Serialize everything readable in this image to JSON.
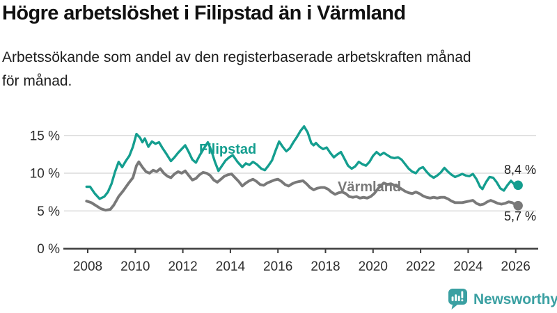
{
  "header": {
    "title": "Högre arbetslöshet i Filipstad än i Värmland",
    "subtitle_lines": [
      "Arbetssökande som andel av den registerbaserade arbetskraften månad",
      "för månad."
    ]
  },
  "chart_data": {
    "type": "line",
    "unit": "%",
    "grid": true,
    "legend_position": "inline-labels",
    "xlim": [
      2007.9,
      2026.8
    ],
    "ylim": [
      0,
      17
    ],
    "x_ticks": [
      {
        "v": 2008,
        "label": "2008"
      },
      {
        "v": 2010,
        "label": "2010"
      },
      {
        "v": 2012,
        "label": "2012"
      },
      {
        "v": 2014,
        "label": "2014"
      },
      {
        "v": 2016,
        "label": "2016"
      },
      {
        "v": 2018,
        "label": "2018"
      },
      {
        "v": 2020,
        "label": "2020"
      },
      {
        "v": 2022,
        "label": "2022"
      },
      {
        "v": 2024,
        "label": "2024"
      },
      {
        "v": 2026,
        "label": "2026"
      }
    ],
    "y_ticks": [
      {
        "v": 0,
        "label": "0 %"
      },
      {
        "v": 5,
        "label": "5 %"
      },
      {
        "v": 10,
        "label": "10 %"
      },
      {
        "v": 15,
        "label": "15 %"
      }
    ],
    "colors": {
      "grid": "#dcdcdc",
      "axis": "#3c3c3c",
      "tick_text": "#2e2e2e"
    },
    "series": [
      {
        "name": "Filipstad",
        "label": "Filipstad",
        "color": "#149e8f",
        "end_label": "8,4 %",
        "end_value": 8.4,
        "points": [
          [
            2007.95,
            8.2
          ],
          [
            2008.1,
            8.2
          ],
          [
            2008.3,
            7.3
          ],
          [
            2008.5,
            6.6
          ],
          [
            2008.7,
            6.9
          ],
          [
            2008.85,
            7.5
          ],
          [
            2009.0,
            8.6
          ],
          [
            2009.15,
            10.2
          ],
          [
            2009.3,
            11.5
          ],
          [
            2009.45,
            10.8
          ],
          [
            2009.6,
            11.6
          ],
          [
            2009.75,
            12.3
          ],
          [
            2009.9,
            13.5
          ],
          [
            2010.05,
            15.2
          ],
          [
            2010.2,
            14.7
          ],
          [
            2010.3,
            14.1
          ],
          [
            2010.4,
            14.6
          ],
          [
            2010.55,
            13.5
          ],
          [
            2010.7,
            14.2
          ],
          [
            2010.85,
            13.9
          ],
          [
            2011.0,
            14.1
          ],
          [
            2011.15,
            13.3
          ],
          [
            2011.3,
            12.6
          ],
          [
            2011.5,
            11.6
          ],
          [
            2011.65,
            12.1
          ],
          [
            2011.8,
            12.7
          ],
          [
            2011.95,
            13.2
          ],
          [
            2012.1,
            13.7
          ],
          [
            2012.25,
            12.8
          ],
          [
            2012.4,
            11.8
          ],
          [
            2012.55,
            11.4
          ],
          [
            2012.7,
            12.3
          ],
          [
            2012.85,
            13.1
          ],
          [
            2013.05,
            14.1
          ],
          [
            2013.2,
            13.0
          ],
          [
            2013.35,
            11.5
          ],
          [
            2013.5,
            10.3
          ],
          [
            2013.65,
            11.0
          ],
          [
            2013.8,
            11.7
          ],
          [
            2013.95,
            12.1
          ],
          [
            2014.1,
            12.4
          ],
          [
            2014.3,
            11.5
          ],
          [
            2014.5,
            10.8
          ],
          [
            2014.65,
            11.3
          ],
          [
            2014.8,
            11.1
          ],
          [
            2014.95,
            11.5
          ],
          [
            2015.1,
            11.2
          ],
          [
            2015.3,
            10.6
          ],
          [
            2015.45,
            10.4
          ],
          [
            2015.6,
            11.0
          ],
          [
            2015.75,
            11.7
          ],
          [
            2015.9,
            13.0
          ],
          [
            2016.05,
            14.2
          ],
          [
            2016.2,
            13.5
          ],
          [
            2016.35,
            12.9
          ],
          [
            2016.5,
            13.3
          ],
          [
            2016.65,
            14.1
          ],
          [
            2016.8,
            14.8
          ],
          [
            2016.95,
            15.6
          ],
          [
            2017.1,
            16.2
          ],
          [
            2017.25,
            15.4
          ],
          [
            2017.4,
            14.0
          ],
          [
            2017.5,
            13.7
          ],
          [
            2017.6,
            14.0
          ],
          [
            2017.75,
            13.5
          ],
          [
            2017.9,
            13.2
          ],
          [
            2018.05,
            13.4
          ],
          [
            2018.2,
            12.7
          ],
          [
            2018.35,
            12.1
          ],
          [
            2018.5,
            12.5
          ],
          [
            2018.65,
            12.8
          ],
          [
            2018.8,
            11.9
          ],
          [
            2018.95,
            11.0
          ],
          [
            2019.1,
            10.6
          ],
          [
            2019.25,
            10.9
          ],
          [
            2019.4,
            11.5
          ],
          [
            2019.55,
            11.2
          ],
          [
            2019.7,
            11.0
          ],
          [
            2019.85,
            11.5
          ],
          [
            2020.0,
            12.3
          ],
          [
            2020.15,
            12.8
          ],
          [
            2020.3,
            12.4
          ],
          [
            2020.45,
            12.7
          ],
          [
            2020.6,
            12.4
          ],
          [
            2020.75,
            12.1
          ],
          [
            2020.9,
            12.0
          ],
          [
            2021.05,
            12.1
          ],
          [
            2021.2,
            11.8
          ],
          [
            2021.35,
            11.2
          ],
          [
            2021.5,
            10.6
          ],
          [
            2021.65,
            10.2
          ],
          [
            2021.8,
            10.0
          ],
          [
            2021.95,
            10.6
          ],
          [
            2022.1,
            10.8
          ],
          [
            2022.25,
            10.2
          ],
          [
            2022.4,
            9.7
          ],
          [
            2022.55,
            9.4
          ],
          [
            2022.7,
            9.7
          ],
          [
            2022.85,
            10.1
          ],
          [
            2023.0,
            10.7
          ],
          [
            2023.15,
            10.2
          ],
          [
            2023.3,
            9.8
          ],
          [
            2023.45,
            9.5
          ],
          [
            2023.6,
            9.7
          ],
          [
            2023.75,
            9.9
          ],
          [
            2023.9,
            9.7
          ],
          [
            2024.05,
            9.6
          ],
          [
            2024.2,
            9.9
          ],
          [
            2024.35,
            9.2
          ],
          [
            2024.5,
            8.2
          ],
          [
            2024.6,
            7.9
          ],
          [
            2024.75,
            8.8
          ],
          [
            2024.9,
            9.5
          ],
          [
            2025.05,
            9.4
          ],
          [
            2025.2,
            8.8
          ],
          [
            2025.35,
            8.0
          ],
          [
            2025.5,
            7.7
          ],
          [
            2025.65,
            8.4
          ],
          [
            2025.8,
            9.0
          ],
          [
            2025.95,
            8.5
          ],
          [
            2026.1,
            8.4
          ]
        ]
      },
      {
        "name": "Värmland",
        "label": "Värmland",
        "color": "#797979",
        "end_label": "5,7 %",
        "end_value": 5.7,
        "points": [
          [
            2007.95,
            6.3
          ],
          [
            2008.15,
            6.1
          ],
          [
            2008.35,
            5.7
          ],
          [
            2008.55,
            5.3
          ],
          [
            2008.75,
            5.1
          ],
          [
            2008.95,
            5.2
          ],
          [
            2009.1,
            5.8
          ],
          [
            2009.3,
            6.9
          ],
          [
            2009.5,
            7.7
          ],
          [
            2009.7,
            8.6
          ],
          [
            2009.9,
            9.4
          ],
          [
            2010.05,
            11.0
          ],
          [
            2010.15,
            11.5
          ],
          [
            2010.3,
            10.8
          ],
          [
            2010.45,
            10.2
          ],
          [
            2010.6,
            10.0
          ],
          [
            2010.75,
            10.4
          ],
          [
            2010.9,
            10.2
          ],
          [
            2011.05,
            10.6
          ],
          [
            2011.2,
            10.0
          ],
          [
            2011.35,
            9.6
          ],
          [
            2011.5,
            9.4
          ],
          [
            2011.65,
            9.9
          ],
          [
            2011.8,
            10.2
          ],
          [
            2011.95,
            10.0
          ],
          [
            2012.1,
            10.3
          ],
          [
            2012.25,
            9.7
          ],
          [
            2012.4,
            9.1
          ],
          [
            2012.55,
            9.3
          ],
          [
            2012.7,
            9.8
          ],
          [
            2012.85,
            10.1
          ],
          [
            2013.0,
            10.0
          ],
          [
            2013.15,
            9.7
          ],
          [
            2013.3,
            9.1
          ],
          [
            2013.45,
            8.8
          ],
          [
            2013.6,
            9.2
          ],
          [
            2013.75,
            9.6
          ],
          [
            2013.9,
            9.8
          ],
          [
            2014.05,
            9.9
          ],
          [
            2014.2,
            9.4
          ],
          [
            2014.35,
            8.9
          ],
          [
            2014.5,
            8.3
          ],
          [
            2014.65,
            8.7
          ],
          [
            2014.8,
            9.0
          ],
          [
            2014.95,
            9.2
          ],
          [
            2015.1,
            8.9
          ],
          [
            2015.25,
            8.5
          ],
          [
            2015.4,
            8.4
          ],
          [
            2015.55,
            8.7
          ],
          [
            2015.7,
            8.9
          ],
          [
            2015.85,
            9.1
          ],
          [
            2016.0,
            9.2
          ],
          [
            2016.15,
            8.9
          ],
          [
            2016.3,
            8.5
          ],
          [
            2016.45,
            8.3
          ],
          [
            2016.6,
            8.6
          ],
          [
            2016.75,
            8.8
          ],
          [
            2016.9,
            8.9
          ],
          [
            2017.05,
            9.0
          ],
          [
            2017.2,
            8.6
          ],
          [
            2017.35,
            8.1
          ],
          [
            2017.5,
            7.8
          ],
          [
            2017.65,
            8.0
          ],
          [
            2017.8,
            8.1
          ],
          [
            2017.95,
            8.1
          ],
          [
            2018.1,
            7.9
          ],
          [
            2018.25,
            7.5
          ],
          [
            2018.4,
            7.2
          ],
          [
            2018.55,
            7.4
          ],
          [
            2018.7,
            7.5
          ],
          [
            2018.85,
            7.3
          ],
          [
            2019.0,
            6.9
          ],
          [
            2019.15,
            6.8
          ],
          [
            2019.3,
            6.9
          ],
          [
            2019.45,
            6.7
          ],
          [
            2019.6,
            6.8
          ],
          [
            2019.75,
            6.7
          ],
          [
            2019.9,
            6.9
          ],
          [
            2020.05,
            7.3
          ],
          [
            2020.25,
            8.1
          ],
          [
            2020.45,
            8.7
          ],
          [
            2020.6,
            8.5
          ],
          [
            2020.75,
            8.6
          ],
          [
            2020.9,
            8.4
          ],
          [
            2021.05,
            8.2
          ],
          [
            2021.2,
            7.9
          ],
          [
            2021.35,
            7.6
          ],
          [
            2021.5,
            7.4
          ],
          [
            2021.65,
            7.3
          ],
          [
            2021.8,
            7.5
          ],
          [
            2021.95,
            7.3
          ],
          [
            2022.1,
            7.0
          ],
          [
            2022.25,
            6.8
          ],
          [
            2022.4,
            6.7
          ],
          [
            2022.55,
            6.8
          ],
          [
            2022.7,
            6.7
          ],
          [
            2022.85,
            6.8
          ],
          [
            2023.0,
            6.8
          ],
          [
            2023.15,
            6.6
          ],
          [
            2023.3,
            6.3
          ],
          [
            2023.45,
            6.1
          ],
          [
            2023.6,
            6.1
          ],
          [
            2023.75,
            6.1
          ],
          [
            2023.9,
            6.2
          ],
          [
            2024.05,
            6.3
          ],
          [
            2024.2,
            6.4
          ],
          [
            2024.35,
            6.0
          ],
          [
            2024.5,
            5.8
          ],
          [
            2024.65,
            5.9
          ],
          [
            2024.8,
            6.2
          ],
          [
            2024.95,
            6.4
          ],
          [
            2025.1,
            6.2
          ],
          [
            2025.25,
            6.0
          ],
          [
            2025.4,
            5.9
          ],
          [
            2025.55,
            6.0
          ],
          [
            2025.7,
            6.2
          ],
          [
            2025.85,
            6.1
          ],
          [
            2026.0,
            5.8
          ],
          [
            2026.1,
            5.7
          ]
        ]
      }
    ]
  },
  "logo": {
    "text": "Newsworthy",
    "icon": "newsworthy-bar-chart-bubble-icon",
    "color": "#3aa0a2"
  }
}
